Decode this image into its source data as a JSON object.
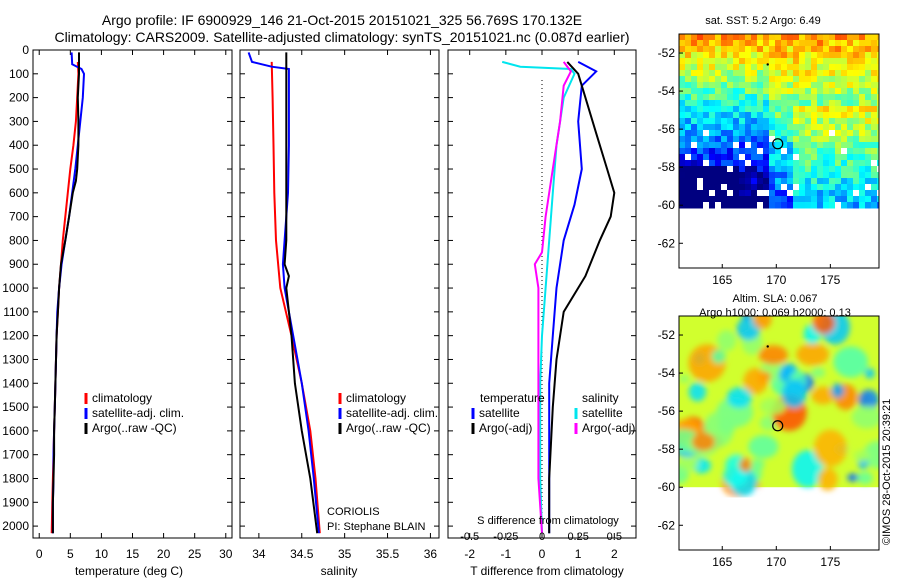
{
  "header": {
    "line1": "Argo profile: IF 6900929_146 21-Oct-2015 20151021_325 56.769S 170.132E",
    "line2": "Climatology: CARS2009. Satellite-adjusted climatology: synTS_20151021.nc (0.087d earlier)"
  },
  "credit": "©IMOS 28-Oct-2015 20:39:21",
  "colors": {
    "clim": "#ff0000",
    "sat": "#0000ff",
    "argo": "#000000",
    "sal_sat": "#00e5ee",
    "sal_argo": "#ff00ff"
  },
  "chart_data": [
    {
      "id": "temperature",
      "type": "line",
      "xlabel": "temperature (deg C)",
      "ylabel": "",
      "xlim": [
        -1,
        31
      ],
      "ylim": [
        2050,
        0
      ],
      "xticks": [
        0,
        5,
        10,
        15,
        20,
        25,
        30
      ],
      "yticks": [
        0,
        100,
        200,
        300,
        400,
        500,
        600,
        700,
        800,
        900,
        1000,
        1100,
        1200,
        1300,
        1400,
        1500,
        1600,
        1700,
        1800,
        1900,
        2000
      ],
      "legend": [
        "climatology",
        "satellite-adj. clim.",
        "Argo(..raw -QC)"
      ],
      "series": [
        {
          "name": "climatology",
          "color": "#ff0000",
          "points": [
            [
              6.2,
              50
            ],
            [
              6.3,
              100
            ],
            [
              6.1,
              200
            ],
            [
              5.9,
              300
            ],
            [
              5.5,
              400
            ],
            [
              5.0,
              500
            ],
            [
              4.6,
              600
            ],
            [
              4.2,
              700
            ],
            [
              3.8,
              800
            ],
            [
              3.5,
              900
            ],
            [
              3.2,
              1000
            ],
            [
              3.0,
              1100
            ],
            [
              2.8,
              1200
            ],
            [
              2.7,
              1300
            ],
            [
              2.6,
              1400
            ],
            [
              2.5,
              1500
            ],
            [
              2.4,
              1600
            ],
            [
              2.3,
              1700
            ],
            [
              2.2,
              1800
            ],
            [
              2.1,
              1900
            ],
            [
              2.0,
              2030
            ]
          ]
        },
        {
          "name": "satellite-adj. clim.",
          "color": "#0000ff",
          "points": [
            [
              5.2,
              10
            ],
            [
              5.3,
              60
            ],
            [
              6.8,
              80
            ],
            [
              7.2,
              100
            ],
            [
              7.0,
              200
            ],
            [
              6.6,
              300
            ],
            [
              6.2,
              400
            ],
            [
              5.8,
              500
            ],
            [
              5.3,
              600
            ],
            [
              4.8,
              700
            ],
            [
              4.2,
              800
            ],
            [
              3.6,
              900
            ],
            [
              3.2,
              1000
            ],
            [
              2.9,
              1100
            ],
            [
              2.8,
              1200
            ],
            [
              2.7,
              1300
            ],
            [
              2.6,
              1400
            ],
            [
              2.5,
              1500
            ],
            [
              2.4,
              1600
            ],
            [
              2.3,
              1700
            ],
            [
              2.3,
              1800
            ],
            [
              2.2,
              1900
            ],
            [
              2.2,
              2030
            ]
          ]
        },
        {
          "name": "Argo(..raw -QC)",
          "color": "#000000",
          "points": [
            [
              6.4,
              10
            ],
            [
              6.4,
              100
            ],
            [
              6.2,
              200
            ],
            [
              6.3,
              300
            ],
            [
              6.3,
              400
            ],
            [
              6.1,
              500
            ],
            [
              5.9,
              550
            ],
            [
              5.4,
              600
            ],
            [
              4.8,
              700
            ],
            [
              4.2,
              800
            ],
            [
              3.5,
              900
            ],
            [
              3.2,
              1000
            ],
            [
              3.0,
              1100
            ],
            [
              2.8,
              1200
            ],
            [
              2.7,
              1300
            ],
            [
              2.6,
              1400
            ],
            [
              2.5,
              1500
            ],
            [
              2.4,
              1600
            ],
            [
              2.4,
              1700
            ],
            [
              2.3,
              1800
            ],
            [
              2.2,
              1900
            ],
            [
              2.2,
              2030
            ]
          ]
        }
      ]
    },
    {
      "id": "salinity",
      "type": "line",
      "xlabel": "salinity",
      "ylabel": "",
      "xlim": [
        33.78,
        36.1
      ],
      "ylim": [
        2050,
        0
      ],
      "xticks": [
        34,
        34.5,
        35,
        35.5,
        36
      ],
      "legend": [
        "climatology",
        "satellite-adj. clim.",
        "Argo(..raw -QC)"
      ],
      "annotation": [
        "CORIOLIS",
        "PI: Stephane BLAIN"
      ],
      "series": [
        {
          "name": "climatology",
          "color": "#ff0000",
          "points": [
            [
              34.15,
              50
            ],
            [
              34.16,
              200
            ],
            [
              34.17,
              400
            ],
            [
              34.18,
              600
            ],
            [
              34.2,
              800
            ],
            [
              34.25,
              1000
            ],
            [
              34.38,
              1200
            ],
            [
              34.5,
              1400
            ],
            [
              34.6,
              1600
            ],
            [
              34.66,
              1800
            ],
            [
              34.71,
              2030
            ]
          ]
        },
        {
          "name": "satellite-adj. clim.",
          "color": "#0000ff",
          "points": [
            [
              33.88,
              10
            ],
            [
              33.92,
              50
            ],
            [
              34.15,
              70
            ],
            [
              34.35,
              80
            ],
            [
              34.35,
              200
            ],
            [
              34.35,
              400
            ],
            [
              34.34,
              600
            ],
            [
              34.3,
              800
            ],
            [
              34.28,
              900
            ],
            [
              34.3,
              1000
            ],
            [
              34.4,
              1200
            ],
            [
              34.5,
              1400
            ],
            [
              34.58,
              1600
            ],
            [
              34.64,
              1800
            ],
            [
              34.7,
              2030
            ]
          ]
        },
        {
          "name": "Argo(..raw -QC)",
          "color": "#000000",
          "points": [
            [
              34.32,
              10
            ],
            [
              34.32,
              400
            ],
            [
              34.32,
              800
            ],
            [
              34.3,
              900
            ],
            [
              34.35,
              950
            ],
            [
              34.32,
              1000
            ],
            [
              34.38,
              1200
            ],
            [
              34.42,
              1400
            ],
            [
              34.5,
              1600
            ],
            [
              34.6,
              1800
            ],
            [
              34.68,
              2030
            ]
          ]
        }
      ]
    },
    {
      "id": "difference",
      "type": "line",
      "xlabel": "T difference from climatology",
      "xlabel_top": "S difference from climatology",
      "ylabel": "",
      "xlim": [
        -2.6,
        2.6
      ],
      "ylim": [
        2050,
        0
      ],
      "xticks": [
        -2,
        -1,
        0,
        1,
        2
      ],
      "xticks_top": [
        "-0.5",
        "-0.25",
        "0",
        "0.25",
        "0.5"
      ],
      "legend_groups": [
        {
          "title": "temperature",
          "entries": [
            "satellite",
            "Argo(-adj)"
          ]
        },
        {
          "title": "salinity",
          "entries": [
            "satellite",
            "Argo(-adj)"
          ]
        }
      ],
      "series": [
        {
          "name": "temperature satellite",
          "color": "#0000ff",
          "points": [
            [
              1.0,
              50
            ],
            [
              1.5,
              90
            ],
            [
              1.1,
              150
            ],
            [
              1.0,
              300
            ],
            [
              1.1,
              500
            ],
            [
              0.9,
              650
            ],
            [
              0.6,
              800
            ],
            [
              0.4,
              1000
            ],
            [
              0.3,
              1200
            ],
            [
              0.2,
              1400
            ],
            [
              0.2,
              1600
            ],
            [
              0.2,
              1800
            ],
            [
              0.2,
              2030
            ]
          ]
        },
        {
          "name": "temperature Argo(-adj)",
          "color": "#000000",
          "points": [
            [
              0.7,
              50
            ],
            [
              1.0,
              100
            ],
            [
              1.2,
              200
            ],
            [
              1.5,
              350
            ],
            [
              1.8,
              500
            ],
            [
              2.0,
              600
            ],
            [
              1.9,
              700
            ],
            [
              1.6,
              800
            ],
            [
              1.2,
              950
            ],
            [
              0.6,
              1100
            ],
            [
              0.4,
              1300
            ],
            [
              0.3,
              1500
            ],
            [
              0.2,
              1800
            ],
            [
              0.2,
              2030
            ]
          ]
        },
        {
          "name": "salinity satellite",
          "color": "#00e5ee",
          "points": [
            [
              -1.1,
              50
            ],
            [
              -0.6,
              70
            ],
            [
              0.8,
              80
            ],
            [
              0.9,
              100
            ],
            [
              0.6,
              200
            ],
            [
              0.4,
              400
            ],
            [
              0.3,
              600
            ],
            [
              0.2,
              800
            ],
            [
              0.1,
              1000
            ],
            [
              0.0,
              1200
            ],
            [
              -0.05,
              1400
            ],
            [
              -0.05,
              1600
            ],
            [
              -0.05,
              1800
            ],
            [
              0.0,
              2030
            ]
          ]
        },
        {
          "name": "salinity Argo(-adj)",
          "color": "#ff00ff",
          "points": [
            [
              0.6,
              50
            ],
            [
              0.8,
              90
            ],
            [
              0.6,
              150
            ],
            [
              0.5,
              300
            ],
            [
              0.3,
              500
            ],
            [
              0.1,
              700
            ],
            [
              0.0,
              850
            ],
            [
              -0.2,
              900
            ],
            [
              -0.1,
              1000
            ],
            [
              -0.1,
              1300
            ],
            [
              -0.1,
              1600
            ],
            [
              -0.1,
              1800
            ],
            [
              0.0,
              2030
            ]
          ]
        }
      ]
    },
    {
      "id": "sst-map",
      "type": "heatmap",
      "title": "sat. SST: 5.2 Argo: 6.49",
      "xlim": [
        161,
        179.5
      ],
      "ylim": [
        -63.3,
        -51
      ],
      "xticks": [
        165,
        170,
        175
      ],
      "yticks": [
        -52,
        -54,
        -56,
        -58,
        -60,
        -62
      ],
      "argo_position": [
        170.132,
        -56.769
      ]
    },
    {
      "id": "sla-map",
      "type": "heatmap",
      "title": "Altim. SLA: 0.067",
      "subtitle": "Argo h1000: 0.069 h2000: 0.13",
      "xlim": [
        161,
        179.5
      ],
      "ylim": [
        -63.3,
        -51
      ],
      "xticks": [
        165,
        170,
        175
      ],
      "yticks": [
        -52,
        -54,
        -56,
        -58,
        -60,
        -62
      ],
      "argo_position": [
        170.132,
        -56.769
      ]
    }
  ]
}
